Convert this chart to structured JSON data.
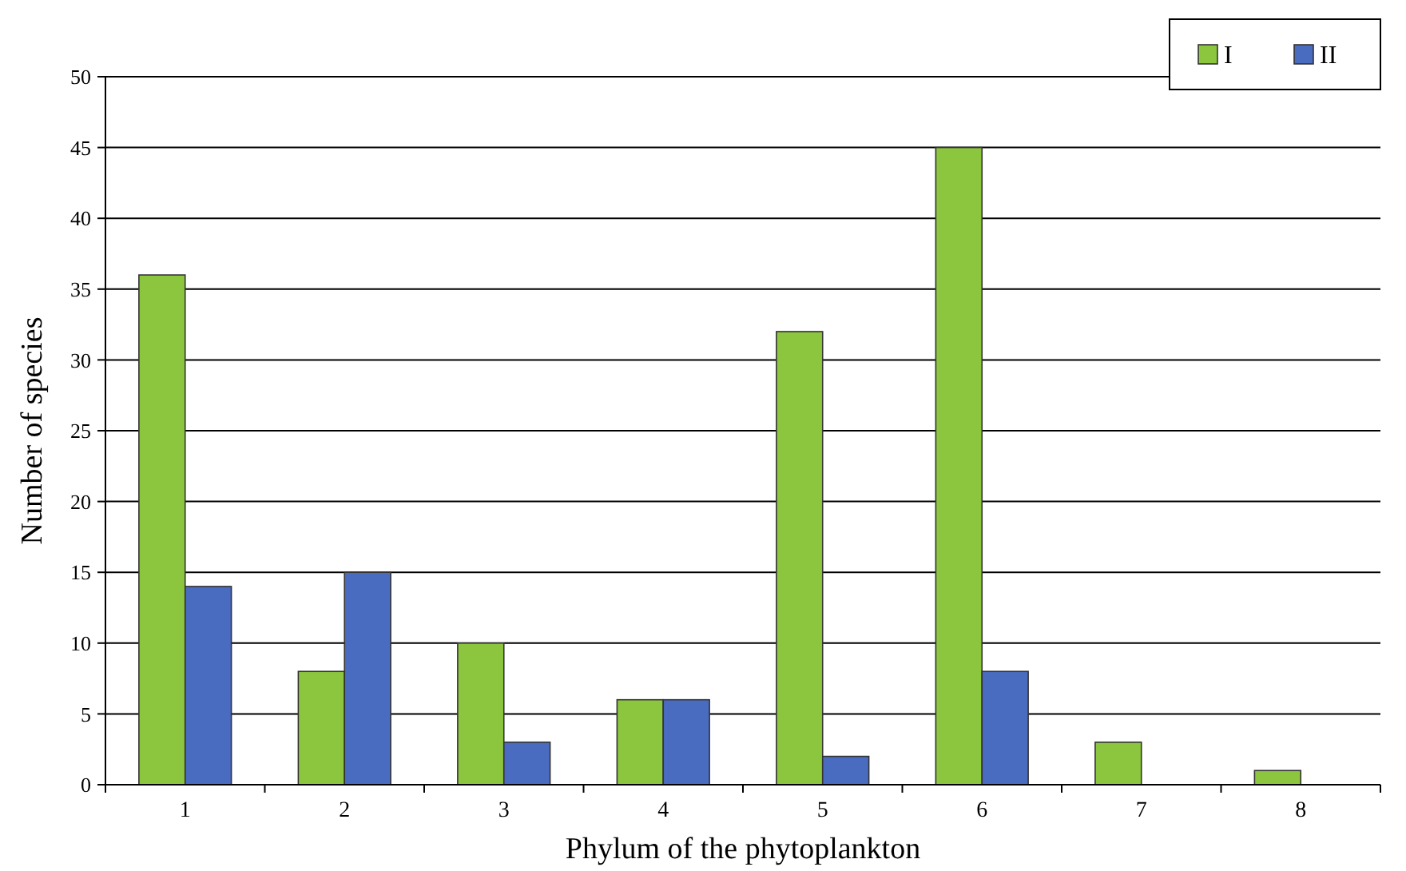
{
  "chart_data": {
    "type": "bar",
    "xlabel": "Phylum of the phytoplankton",
    "ylabel": "Number of species",
    "categories": [
      "1",
      "2",
      "3",
      "4",
      "5",
      "6",
      "7",
      "8"
    ],
    "series": [
      {
        "name": "I",
        "color": "#8cc63e",
        "values": [
          36,
          8,
          10,
          6,
          32,
          45,
          3,
          1
        ]
      },
      {
        "name": "II",
        "color": "#4a6cc0",
        "values": [
          14,
          15,
          3,
          6,
          2,
          8,
          null,
          null
        ]
      }
    ],
    "ylim": [
      0,
      50
    ],
    "yticks": [
      0,
      5,
      10,
      15,
      20,
      25,
      30,
      35,
      40,
      45,
      50
    ],
    "grid": "y",
    "legend": "top right"
  }
}
